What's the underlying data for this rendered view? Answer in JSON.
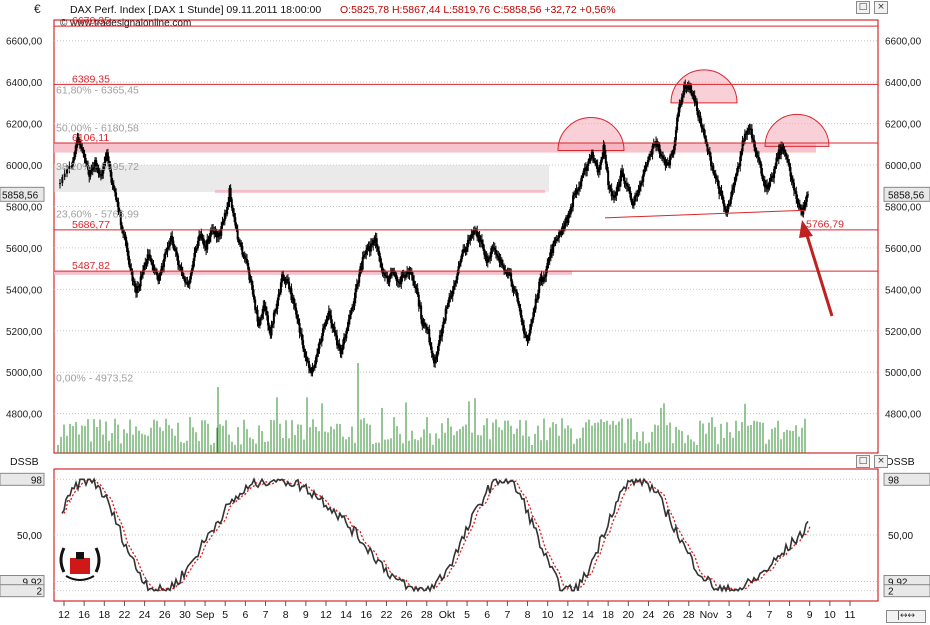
{
  "currency_symbol": "€",
  "header": {
    "instrument": "DAX Perf. Index [.DAX  1 Stunde] 09.11.2011 18:00:00",
    "ohlc": "O:5825,78 H:5867,44 L:5819,76 C:5858,56 +32,72 +0,56%",
    "source": "© www.tradesignalonline.com"
  },
  "main_price_axis": {
    "ticks": [
      "6600,00",
      "6400,00",
      "6200,00",
      "6000,00",
      "5800,00",
      "5600,00",
      "5400,00",
      "5200,00",
      "5000,00",
      "4800,00"
    ],
    "tick_values": [
      6600,
      6400,
      6200,
      6000,
      5800,
      5600,
      5400,
      5200,
      5000,
      4800
    ],
    "current_label": "5858,56",
    "current_value": 5858.56,
    "range": [
      4610,
      6700
    ]
  },
  "horizontal_lines": [
    {
      "label": "6670,35",
      "value": 6670.35
    },
    {
      "label": "6389,35",
      "value": 6389.35
    },
    {
      "label": "6106,11",
      "value": 6106.11
    },
    {
      "label": "5686,77",
      "value": 5686.77
    },
    {
      "label": "5487,82",
      "value": 5487.82
    }
  ],
  "fibonacci": [
    {
      "label": "61,80% - 6365,45",
      "value": 6365.45
    },
    {
      "label": "50,00% - 6180,58",
      "value": 6180.58
    },
    {
      "label": "38,20% - 5995,72",
      "value": 5995.72
    },
    {
      "label": "23,60% - 5766,99",
      "value": 5766.99
    },
    {
      "label": "0,00% - 4973,52",
      "value": 4973.52
    }
  ],
  "annotation": {
    "label": "5766,79",
    "value": 5766.79,
    "arrow_color": "#c02020"
  },
  "x_axis_ticks": [
    "12",
    "16",
    "18",
    "22",
    "24",
    "26",
    "30",
    "Sep",
    "5",
    "6",
    "7",
    "8",
    "9",
    "12",
    "14",
    "16",
    "22",
    "26",
    "28",
    "Okt",
    "5",
    "6",
    "7",
    "8",
    "10",
    "12",
    "14",
    "18",
    "20",
    "24",
    "26",
    "28",
    "Nov",
    "3",
    "4",
    "7",
    "8",
    "9",
    "10",
    "11"
  ],
  "indicator": {
    "name": "DSSB",
    "ticks": [
      "98",
      "50,00",
      "9,92",
      "2"
    ],
    "range": [
      0,
      100
    ]
  },
  "colors": {
    "resistance_line": "#d9262c",
    "zone_fill": "#f6b8c4",
    "gray_zone": "#d9d9d9",
    "candles": "#000000",
    "volume": "#2e8b2e",
    "signal_line": "#e01818",
    "dssb_line": "#333333",
    "panel_border": "#cc0000"
  },
  "chart_data": {
    "type": "line",
    "title": "DAX Perf. Index [.DAX  1 Stunde] 09.11.2011 18:00:00",
    "ylim": [
      4610,
      6700
    ],
    "x_unit": "hourly bars, 12 Aug 2011 – 9 Nov 2011",
    "keypoints": [
      [
        0,
        5920
      ],
      [
        2,
        6010
      ],
      [
        3,
        6120
      ],
      [
        4,
        6070
      ],
      [
        5,
        5960
      ],
      [
        6,
        6010
      ],
      [
        7,
        5950
      ],
      [
        8,
        6050
      ],
      [
        9,
        5900
      ],
      [
        10,
        5780
      ],
      [
        11,
        5650
      ],
      [
        12,
        5500
      ],
      [
        13,
        5380
      ],
      [
        14,
        5470
      ],
      [
        15,
        5560
      ],
      [
        16,
        5500
      ],
      [
        17,
        5450
      ],
      [
        18,
        5560
      ],
      [
        19,
        5660
      ],
      [
        20,
        5550
      ],
      [
        21,
        5470
      ],
      [
        22,
        5420
      ],
      [
        23,
        5560
      ],
      [
        24,
        5660
      ],
      [
        25,
        5610
      ],
      [
        26,
        5700
      ],
      [
        27,
        5650
      ],
      [
        28,
        5720
      ],
      [
        29,
        5870
      ],
      [
        30,
        5700
      ],
      [
        31,
        5600
      ],
      [
        32,
        5520
      ],
      [
        33,
        5370
      ],
      [
        34,
        5230
      ],
      [
        35,
        5320
      ],
      [
        36,
        5190
      ],
      [
        37,
        5320
      ],
      [
        38,
        5460
      ],
      [
        39,
        5440
      ],
      [
        40,
        5320
      ],
      [
        41,
        5200
      ],
      [
        42,
        5090
      ],
      [
        43,
        5000
      ],
      [
        44,
        5080
      ],
      [
        45,
        5210
      ],
      [
        46,
        5280
      ],
      [
        47,
        5180
      ],
      [
        48,
        5080
      ],
      [
        49,
        5200
      ],
      [
        50,
        5310
      ],
      [
        51,
        5450
      ],
      [
        52,
        5560
      ],
      [
        53,
        5600
      ],
      [
        54,
        5650
      ],
      [
        55,
        5510
      ],
      [
        56,
        5440
      ],
      [
        57,
        5500
      ],
      [
        58,
        5430
      ],
      [
        59,
        5470
      ],
      [
        60,
        5490
      ],
      [
        61,
        5400
      ],
      [
        62,
        5240
      ],
      [
        63,
        5190
      ],
      [
        64,
        5050
      ],
      [
        65,
        5160
      ],
      [
        66,
        5290
      ],
      [
        67,
        5380
      ],
      [
        68,
        5480
      ],
      [
        69,
        5580
      ],
      [
        70,
        5630
      ],
      [
        71,
        5690
      ],
      [
        72,
        5640
      ],
      [
        73,
        5540
      ],
      [
        74,
        5600
      ],
      [
        75,
        5540
      ],
      [
        76,
        5510
      ],
      [
        77,
        5470
      ],
      [
        78,
        5370
      ],
      [
        79,
        5240
      ],
      [
        80,
        5150
      ],
      [
        81,
        5280
      ],
      [
        82,
        5430
      ],
      [
        83,
        5480
      ],
      [
        84,
        5580
      ],
      [
        85,
        5650
      ],
      [
        86,
        5700
      ],
      [
        87,
        5750
      ],
      [
        88,
        5860
      ],
      [
        89,
        5900
      ],
      [
        90,
        5990
      ],
      [
        91,
        6060
      ],
      [
        92,
        5970
      ],
      [
        93,
        6080
      ],
      [
        94,
        5880
      ],
      [
        95,
        5840
      ],
      [
        96,
        5960
      ],
      [
        97,
        5900
      ],
      [
        98,
        5820
      ],
      [
        99,
        5860
      ],
      [
        100,
        5970
      ],
      [
        101,
        6050
      ],
      [
        102,
        6120
      ],
      [
        103,
        6030
      ],
      [
        104,
        6000
      ],
      [
        105,
        6090
      ],
      [
        106,
        6290
      ],
      [
        107,
        6390
      ],
      [
        108,
        6360
      ],
      [
        109,
        6270
      ],
      [
        110,
        6160
      ],
      [
        111,
        6050
      ],
      [
        112,
        5960
      ],
      [
        113,
        5860
      ],
      [
        114,
        5760
      ],
      [
        115,
        5860
      ],
      [
        116,
        5980
      ],
      [
        117,
        6130
      ],
      [
        118,
        6190
      ],
      [
        119,
        6080
      ],
      [
        120,
        5970
      ],
      [
        121,
        5870
      ],
      [
        122,
        5950
      ],
      [
        123,
        6060
      ],
      [
        124,
        6080
      ],
      [
        125,
        5950
      ],
      [
        126,
        5830
      ],
      [
        127,
        5780
      ],
      [
        128,
        5858
      ]
    ]
  }
}
